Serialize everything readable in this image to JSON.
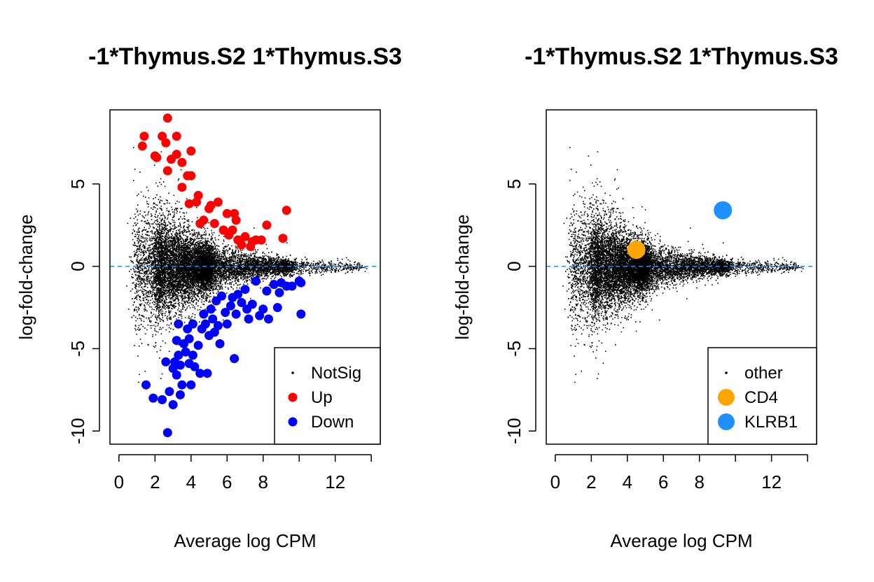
{
  "chart_data": [
    {
      "type": "scatter",
      "title": "-1*Thymus.S2 1*Thymus.S3",
      "xlabel": "Average log CPM",
      "ylabel": "log-fold-change",
      "xlim": [
        -0.5,
        14.5
      ],
      "ylim": [
        -10.8,
        9.5
      ],
      "xticks": [
        0,
        2,
        4,
        6,
        8,
        10,
        12,
        14
      ],
      "xtick_labels": [
        "0",
        "2",
        "4",
        "6",
        "8",
        "",
        "12",
        ""
      ],
      "yticks": [
        -10,
        -5,
        0,
        5
      ],
      "ytick_labels": [
        "-10",
        "-5",
        "0",
        "5"
      ],
      "reference_line": {
        "y": 0,
        "style": "dashed",
        "color": "#1E90FF"
      },
      "legend": {
        "position": "bottom-right",
        "entries": [
          {
            "label": "NotSig",
            "color": "#000000",
            "marker": "small-dot"
          },
          {
            "label": "Up",
            "color": "#FF0000",
            "marker": "dot"
          },
          {
            "label": "Down",
            "color": "#0000FF",
            "marker": "dot"
          }
        ]
      },
      "background_cloud": {
        "name": "NotSig",
        "color": "#000000",
        "description_points_approx": 12000
      },
      "series": [
        {
          "name": "Up",
          "color": "#FF0000",
          "points": [
            [
              1.3,
              7.3
            ],
            [
              1.4,
              7.9
            ],
            [
              2.0,
              6.7
            ],
            [
              2.1,
              6.6
            ],
            [
              2.4,
              7.9
            ],
            [
              2.6,
              7.5
            ],
            [
              2.7,
              9.0
            ],
            [
              2.7,
              5.8
            ],
            [
              2.9,
              6.5
            ],
            [
              3.2,
              7.9
            ],
            [
              3.2,
              6.8
            ],
            [
              3.5,
              6.3
            ],
            [
              3.5,
              4.8
            ],
            [
              3.8,
              5.5
            ],
            [
              3.9,
              3.8
            ],
            [
              4.0,
              5.5
            ],
            [
              4.0,
              7.0
            ],
            [
              4.3,
              3.9
            ],
            [
              4.4,
              4.3
            ],
            [
              4.5,
              2.6
            ],
            [
              4.7,
              2.8
            ],
            [
              5.0,
              3.5
            ],
            [
              5.1,
              3.7
            ],
            [
              5.3,
              2.6
            ],
            [
              5.5,
              3.9
            ],
            [
              5.8,
              2.2
            ],
            [
              6.0,
              3.2
            ],
            [
              6.1,
              1.9
            ],
            [
              6.3,
              2.2
            ],
            [
              6.4,
              3.2
            ],
            [
              6.5,
              2.8
            ],
            [
              6.6,
              1.6
            ],
            [
              6.8,
              1.3
            ],
            [
              7.0,
              1.8
            ],
            [
              7.3,
              1.2
            ],
            [
              7.4,
              1.5
            ],
            [
              7.6,
              1.6
            ],
            [
              7.9,
              1.6
            ],
            [
              8.2,
              2.5
            ],
            [
              9.1,
              1.7
            ],
            [
              9.3,
              3.4
            ]
          ]
        },
        {
          "name": "Down",
          "color": "#0000FF",
          "points": [
            [
              1.5,
              -7.2
            ],
            [
              1.9,
              -8.0
            ],
            [
              2.4,
              -8.1
            ],
            [
              2.6,
              -5.8
            ],
            [
              2.7,
              -10.1
            ],
            [
              2.8,
              -7.6
            ],
            [
              3.0,
              -6.2
            ],
            [
              3.0,
              -8.4
            ],
            [
              3.1,
              -5.8
            ],
            [
              3.2,
              -4.5
            ],
            [
              3.2,
              -6.6
            ],
            [
              3.3,
              -3.5
            ],
            [
              3.3,
              -5.4
            ],
            [
              3.4,
              -7.8
            ],
            [
              3.4,
              -6.0
            ],
            [
              3.5,
              -7.2
            ],
            [
              3.6,
              -4.7
            ],
            [
              3.7,
              -5.2
            ],
            [
              3.8,
              -3.8
            ],
            [
              3.9,
              -4.4
            ],
            [
              3.9,
              -5.9
            ],
            [
              4.0,
              -7.2
            ],
            [
              4.1,
              -3.5
            ],
            [
              4.1,
              -5.4
            ],
            [
              4.2,
              -6.1
            ],
            [
              4.4,
              -4.8
            ],
            [
              4.5,
              -6.5
            ],
            [
              4.6,
              -3.8
            ],
            [
              4.7,
              -2.9
            ],
            [
              4.8,
              -3.5
            ],
            [
              4.9,
              -6.5
            ],
            [
              5.0,
              -4.2
            ],
            [
              5.1,
              -2.6
            ],
            [
              5.2,
              -3.2
            ],
            [
              5.3,
              -4.0
            ],
            [
              5.4,
              -2.1
            ],
            [
              5.5,
              -3.6
            ],
            [
              5.6,
              -4.7
            ],
            [
              5.7,
              -1.8
            ],
            [
              5.9,
              -2.8
            ],
            [
              6.0,
              -3.5
            ],
            [
              6.2,
              -2.4
            ],
            [
              6.3,
              -1.9
            ],
            [
              6.4,
              -5.6
            ],
            [
              6.5,
              -2.9
            ],
            [
              6.6,
              -1.7
            ],
            [
              6.8,
              -2.2
            ],
            [
              7.0,
              -1.4
            ],
            [
              7.1,
              -2.6
            ],
            [
              7.2,
              -3.2
            ],
            [
              7.4,
              -2.3
            ],
            [
              7.6,
              -0.9
            ],
            [
              7.8,
              -3.0
            ],
            [
              8.0,
              -2.6
            ],
            [
              8.2,
              -1.5
            ],
            [
              8.3,
              -3.2
            ],
            [
              8.6,
              -1.1
            ],
            [
              8.8,
              -2.5
            ],
            [
              8.9,
              -1.6
            ],
            [
              9.0,
              -1.0
            ],
            [
              9.3,
              -1.2
            ],
            [
              9.6,
              -1.2
            ],
            [
              10.0,
              -0.9
            ],
            [
              10.1,
              -1.0
            ],
            [
              10.1,
              -2.9
            ]
          ]
        }
      ]
    },
    {
      "type": "scatter",
      "title": "-1*Thymus.S2 1*Thymus.S3",
      "xlabel": "Average log CPM",
      "ylabel": "log-fold-change",
      "xlim": [
        -0.5,
        14.5
      ],
      "ylim": [
        -10.8,
        9.5
      ],
      "xticks": [
        0,
        2,
        4,
        6,
        8,
        10,
        12,
        14
      ],
      "xtick_labels": [
        "0",
        "2",
        "4",
        "6",
        "8",
        "",
        "12",
        ""
      ],
      "yticks": [
        -10,
        -5,
        0,
        5
      ],
      "ytick_labels": [
        "-10",
        "-5",
        "0",
        "5"
      ],
      "reference_line": {
        "y": 0,
        "style": "dashed",
        "color": "#1E90FF"
      },
      "legend": {
        "position": "bottom-right",
        "entries": [
          {
            "label": "other",
            "color": "#000000",
            "marker": "small-dot"
          },
          {
            "label": "CD4",
            "color": "#FFA500",
            "marker": "large-dot"
          },
          {
            "label": "KLRB1",
            "color": "#1E90FF",
            "marker": "large-dot"
          }
        ]
      },
      "background_cloud": {
        "name": "other",
        "color": "#000000",
        "description_points_approx": 12000
      },
      "series": [
        {
          "name": "CD4",
          "color": "#FFA500",
          "points": [
            [
              4.5,
              1.0
            ]
          ]
        },
        {
          "name": "KLRB1",
          "color": "#1E90FF",
          "points": [
            [
              9.3,
              3.4
            ]
          ]
        }
      ]
    }
  ]
}
